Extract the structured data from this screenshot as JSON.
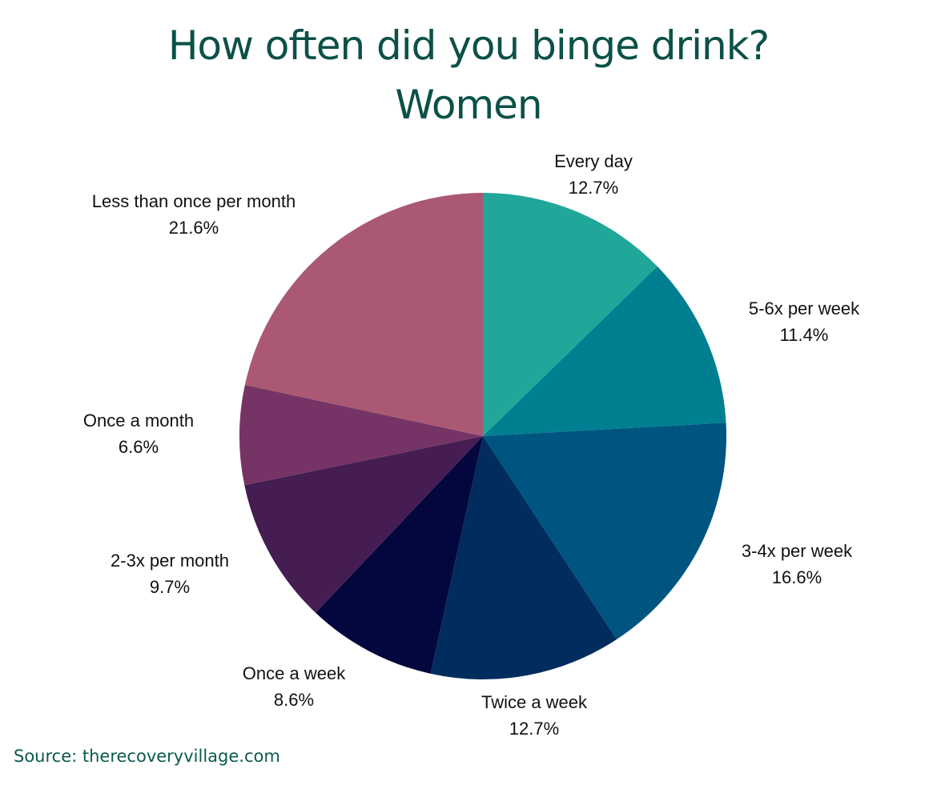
{
  "title": {
    "line1": "How often did you binge drink?",
    "line2": "Women"
  },
  "source": "Source: therecoveryvillage.com",
  "chart_data": {
    "type": "pie",
    "title": "How often did you binge drink? Women",
    "start_angle": "12 o'clock",
    "direction": "clockwise",
    "legend": "none (labels beside slices)",
    "categories": [
      "Every day",
      "5-6x per week",
      "3-4x per week",
      "Twice a week",
      "Once a week",
      "2-3x per month",
      "Once a month",
      "Less than once per month"
    ],
    "values": [
      12.7,
      11.4,
      16.6,
      12.7,
      8.6,
      9.7,
      6.6,
      21.6
    ],
    "value_labels": [
      "12.7%",
      "11.4%",
      "16.6%",
      "12.7%",
      "8.6%",
      "9.7%",
      "6.6%",
      "21.6%"
    ],
    "colors": [
      "#21a79a",
      "#007f90",
      "#005580",
      "#002c5e",
      "#03073d",
      "#451d52",
      "#753465",
      "#aa5874"
    ]
  },
  "labels": [
    {
      "name": "Every day",
      "pct": "12.7%"
    },
    {
      "name": "5-6x per week",
      "pct": "11.4%"
    },
    {
      "name": "3-4x per week",
      "pct": "16.6%"
    },
    {
      "name": "Twice a week",
      "pct": "12.7%"
    },
    {
      "name": "Once a week",
      "pct": "8.6%"
    },
    {
      "name": "2-3x per month",
      "pct": "9.7%"
    },
    {
      "name": "Once a month",
      "pct": "6.6%"
    },
    {
      "name": "Less than once per month",
      "pct": "21.6%"
    }
  ]
}
